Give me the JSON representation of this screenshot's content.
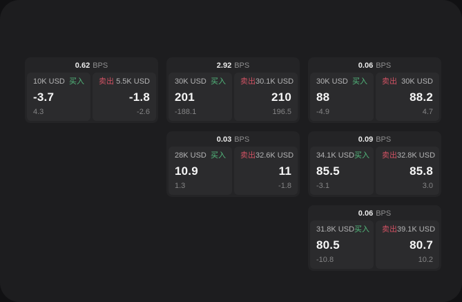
{
  "labels": {
    "bps": "BPS",
    "buy": "买入",
    "sell": "卖出"
  },
  "colors": {
    "buy": "#53ba7d",
    "sell": "#d05263",
    "outer_bg": "#111113",
    "panel_bg": "#1d1d1f",
    "card_bg": "#242426",
    "tile_bg": "#2b2b2d"
  },
  "cards": [
    {
      "bps": "0.62",
      "buy": {
        "notional": "10K USD",
        "price": "-3.7",
        "delta": "4.3"
      },
      "sell": {
        "notional": "5.5K USD",
        "price": "-1.8",
        "delta": "-2.6"
      }
    },
    {
      "bps": "2.92",
      "buy": {
        "notional": "30K USD",
        "price": "201",
        "delta": "-188.1"
      },
      "sell": {
        "notional": "30.1K USD",
        "price": "210",
        "delta": "196.5"
      }
    },
    {
      "bps": "0.06",
      "buy": {
        "notional": "30K USD",
        "price": "88",
        "delta": "-4.9"
      },
      "sell": {
        "notional": "30K USD",
        "price": "88.2",
        "delta": "4.7"
      }
    },
    {
      "bps": "0.03",
      "buy": {
        "notional": "28K USD",
        "price": "10.9",
        "delta": "1.3"
      },
      "sell": {
        "notional": "32.6K USD",
        "price": "11",
        "delta": "-1.8"
      }
    },
    {
      "bps": "0.09",
      "buy": {
        "notional": "34.1K USD",
        "price": "85.5",
        "delta": "-3.1"
      },
      "sell": {
        "notional": "32.8K USD",
        "price": "85.8",
        "delta": "3.0"
      }
    },
    {
      "bps": "0.06",
      "buy": {
        "notional": "31.8K USD",
        "price": "80.5",
        "delta": "-10.8"
      },
      "sell": {
        "notional": "39.1K USD",
        "price": "80.7",
        "delta": "10.2"
      }
    }
  ]
}
